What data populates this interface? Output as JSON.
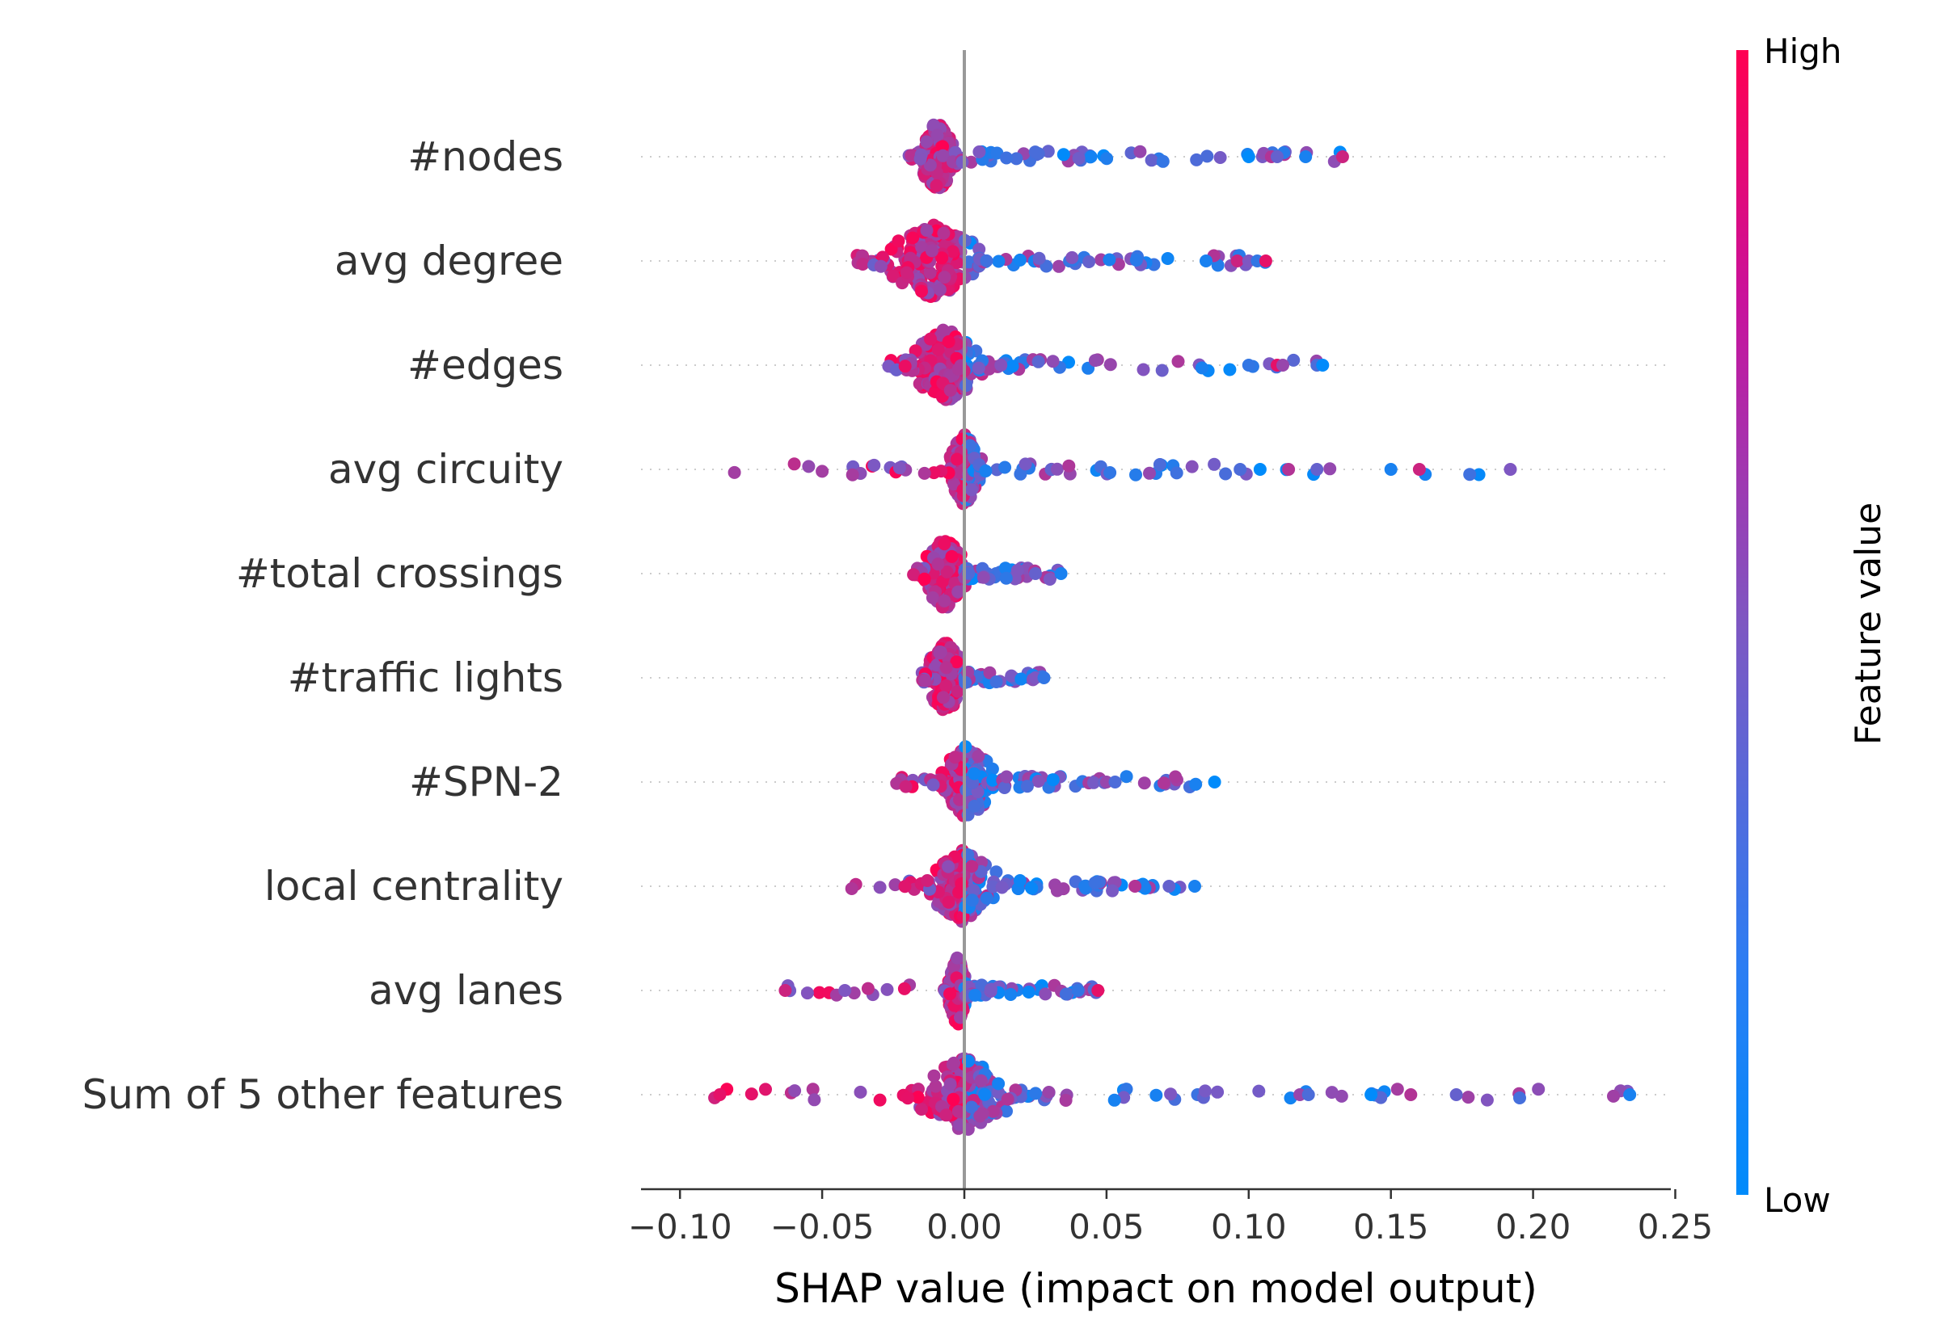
{
  "chart_data": {
    "type": "scatter",
    "subtype": "shap-beeswarm",
    "xlabel": "SHAP value (impact on model output)",
    "xlim": [
      -0.112,
      0.25
    ],
    "xticks": [
      "−0.10",
      "−0.05",
      "0.00",
      "0.05",
      "0.10",
      "0.15",
      "0.20",
      "0.25"
    ],
    "xtick_values": [
      -0.1,
      -0.05,
      0.0,
      0.05,
      0.1,
      0.15,
      0.2,
      0.25
    ],
    "colorbar": {
      "title": "Feature value",
      "high_label": "High",
      "low_label": "Low",
      "low_color": "#008bfb",
      "mid_color": "#7e57c2",
      "high_color": "#ff0052"
    },
    "features": [
      {
        "name": "#nodes",
        "range": [
          -0.022,
          0.133
        ],
        "core": [
          -0.015,
          -0.004
        ],
        "notable_points": [
          0.1,
          0.108,
          0.11,
          0.12,
          0.133
        ]
      },
      {
        "name": "avg degree",
        "range": [
          -0.041,
          0.106
        ],
        "core": [
          -0.028,
          0.005
        ],
        "notable_points": [
          0.085,
          0.096,
          0.1,
          0.103,
          0.106
        ]
      },
      {
        "name": "#edges",
        "range": [
          -0.027,
          0.126
        ],
        "core": [
          -0.018,
          0.005
        ],
        "notable_points": [
          0.1,
          0.11,
          0.112,
          0.124,
          0.126
        ]
      },
      {
        "name": "avg circuity",
        "range": [
          -0.082,
          0.192
        ],
        "core": [
          -0.005,
          0.005
        ],
        "notable_points": [
          0.097,
          0.104,
          0.114,
          0.124,
          0.15,
          0.16,
          0.192
        ]
      },
      {
        "name": "#total crossings",
        "range": [
          -0.018,
          0.034
        ],
        "core": [
          -0.014,
          0.0
        ],
        "notable_points": [
          0.025,
          0.034
        ]
      },
      {
        "name": "#traffic lights",
        "range": [
          -0.015,
          0.028
        ],
        "core": [
          -0.013,
          0.0
        ],
        "notable_points": [
          0.025,
          0.028
        ]
      },
      {
        "name": "#SPN-2",
        "range": [
          -0.024,
          0.088
        ],
        "core": [
          -0.008,
          0.01
        ],
        "notable_points": [
          0.05,
          0.053,
          0.088
        ]
      },
      {
        "name": "local centrality",
        "range": [
          -0.043,
          0.081
        ],
        "core": [
          -0.012,
          0.01
        ],
        "notable_points": [
          0.06,
          0.072,
          0.081
        ]
      },
      {
        "name": "avg lanes",
        "range": [
          -0.063,
          0.047
        ],
        "core": [
          -0.005,
          0.0
        ],
        "notable_points": [
          -0.063,
          -0.042,
          0.04,
          0.047
        ]
      },
      {
        "name": "Sum of 5 other features",
        "range": [
          -0.097,
          0.234
        ],
        "core": [
          -0.015,
          0.015
        ],
        "notable_points": [
          -0.086,
          0.118,
          0.121,
          0.143,
          0.157,
          0.173,
          0.234
        ]
      }
    ]
  }
}
